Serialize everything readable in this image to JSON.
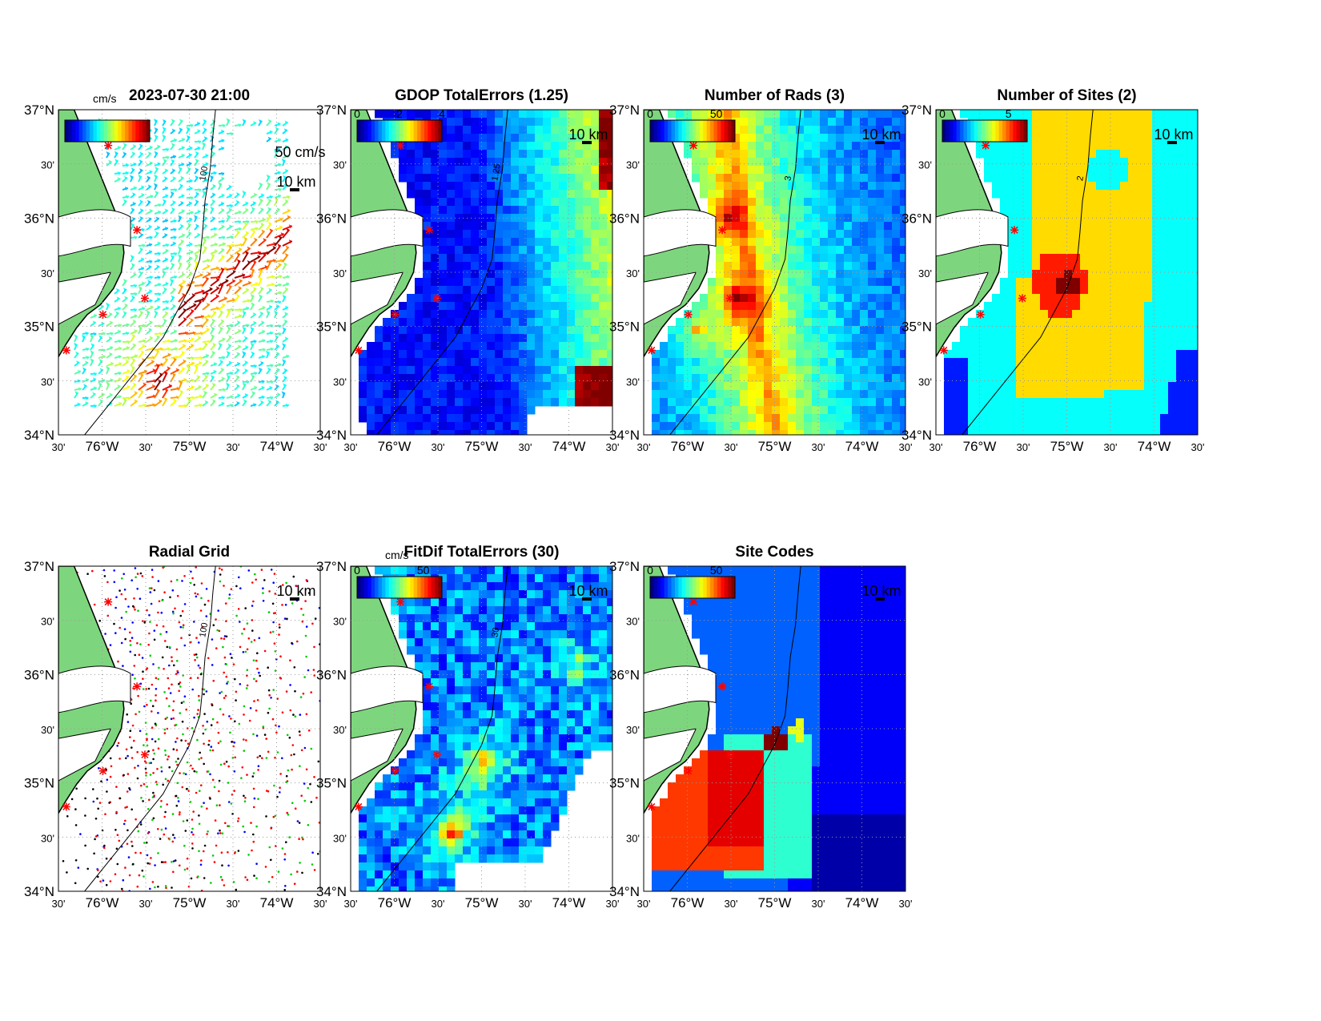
{
  "figure": {
    "time_stamp": "2023-07-30 21:00",
    "lat_labels": [
      "37°N",
      "30'",
      "36°N",
      "30'",
      "35°N",
      "30'",
      "34°N"
    ],
    "lon_labels": [
      "30'",
      "76°W",
      "30'",
      "75°W",
      "30'",
      "74°W",
      "30'"
    ],
    "scale_label": "10 km",
    "vector_scale_label": "50 cm/s",
    "colors": {
      "land": "#7dd67d",
      "ocean": "#ffffff",
      "site_marker": "#ff0000",
      "contour": "#000000"
    }
  },
  "panels": [
    {
      "id": "total-currents",
      "title": "2023-07-30 21:00",
      "colorbar_unit": "cm/s",
      "colorbar_ticks": [],
      "contour_label": "100",
      "kind": "vectors"
    },
    {
      "id": "gdop-total-errors",
      "title": "GDOP TotalErrors (1.25)",
      "colorbar_unit": "",
      "colorbar_ticks": [
        "0",
        "2",
        "4"
      ],
      "contour_label": "1.25",
      "kind": "gdop"
    },
    {
      "id": "number-of-rads",
      "title": "Number of Rads (3)",
      "colorbar_unit": "",
      "colorbar_ticks": [
        "0",
        "50"
      ],
      "contour_label": "3",
      "kind": "rads"
    },
    {
      "id": "number-of-sites",
      "title": "Number of Sites (2)",
      "colorbar_unit": "",
      "colorbar_ticks": [
        "0",
        "5"
      ],
      "contour_label": "2",
      "kind": "sites"
    },
    {
      "id": "radial-grid",
      "title": "Radial Grid",
      "colorbar_unit": "",
      "colorbar_ticks": [],
      "contour_label": "100",
      "kind": "radial"
    },
    {
      "id": "fitdif-total-errors",
      "title": "FitDif TotalErrors (30)",
      "colorbar_unit": "cm/s",
      "colorbar_ticks": [
        "0",
        "50"
      ],
      "contour_label": "30",
      "kind": "fitdif"
    },
    {
      "id": "site-codes",
      "title": "Site Codes",
      "colorbar_unit": "",
      "colorbar_ticks": [
        "0",
        "50"
      ],
      "contour_label": "",
      "kind": "codes"
    }
  ]
}
